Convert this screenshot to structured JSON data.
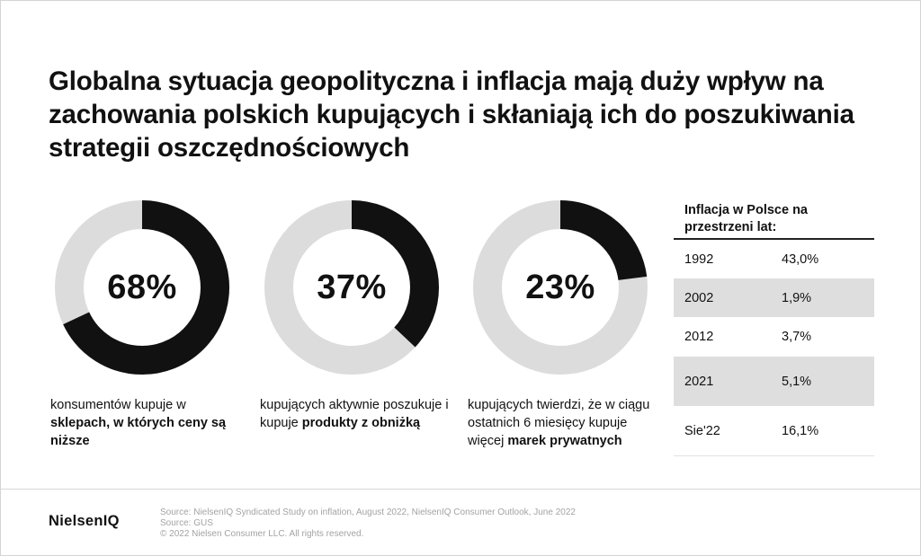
{
  "title": "Globalna sytuacja geopolityczna i inflacja mają duży wpływ na zachowania polskich kupujących i skłaniają ich do poszukiwania strategii oszczędnościowych",
  "colors": {
    "ring_fill": "#111111",
    "ring_track": "#dcdcdc",
    "row_shade": "#dedede"
  },
  "chart_data": [
    {
      "type": "pie",
      "value": 68,
      "label": "68%",
      "caption_plain": "konsumentów kupuje w ",
      "caption_bold": "sklepach, w których ceny są niższe",
      "caption_tail": ""
    },
    {
      "type": "pie",
      "value": 37,
      "label": "37%",
      "caption_plain": "kupujących aktywnie poszukuje i kupuje ",
      "caption_bold": "produkty z obniżką",
      "caption_tail": ""
    },
    {
      "type": "pie",
      "value": 23,
      "label": "23%",
      "caption_plain": "kupujących twierdzi, że w ciągu ostatnich 6 miesięcy kupuje więcej ",
      "caption_bold": "marek prywatnych",
      "caption_tail": ""
    },
    {
      "type": "table",
      "title": "Inflacja w Polsce na przestrzeni lat:",
      "rows": [
        {
          "year": "1992",
          "value": "43,0%",
          "shaded": false
        },
        {
          "year": "2002",
          "value": "1,9%",
          "shaded": true
        },
        {
          "year": "2012",
          "value": "3,7%",
          "shaded": false
        },
        {
          "year": "2021",
          "value": "5,1%",
          "shaded": true
        },
        {
          "year": "Sie'22",
          "value": "16,1%",
          "shaded": false
        }
      ]
    }
  ],
  "footer": {
    "logo": "NielsenIQ",
    "source_1": "Source: NielsenIQ Syndicated Study on inflation, August 2022, NielsenIQ Consumer Outlook, June 2022",
    "source_2": "Source: GUS",
    "copyright": "© 2022 Nielsen Consumer LLC. All rights reserved."
  }
}
